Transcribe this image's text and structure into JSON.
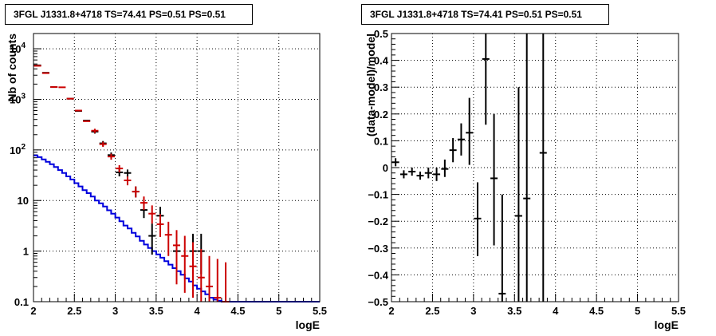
{
  "chart_data": [
    {
      "type": "line",
      "title": "3FGL J1331.8+4718 TS=74.41 PS=0.51 PS=0.51",
      "xlabel": "logE",
      "ylabel": "Nb of counts",
      "xlim": [
        2,
        5.5
      ],
      "ylim": [
        0.1,
        20000
      ],
      "yscale": "log",
      "grid": true,
      "x_ticks": [
        "2",
        "2.5",
        "3",
        "3.5",
        "4",
        "4.5",
        "5",
        "5.5"
      ],
      "y_ticks": [
        "0.1",
        "1",
        "10",
        "10^2",
        "10^3",
        "10^4"
      ],
      "colors": {
        "data": "#000000",
        "model_total": "#cc0000",
        "model_component": "#0000dd"
      },
      "series": [
        {
          "style": "black-points",
          "points": [
            {
              "x": 2.05,
              "y": 4700
            },
            {
              "x": 2.15,
              "y": 3350
            },
            {
              "x": 2.25,
              "y": 1750
            },
            {
              "x": 2.45,
              "y": 1030
            },
            {
              "x": 2.55,
              "y": 590
            },
            {
              "x": 2.65,
              "y": 380
            },
            {
              "x": 2.75,
              "y": 230,
              "ylo": 210,
              "yhi": 252
            },
            {
              "x": 2.85,
              "y": 135,
              "ylo": 120,
              "yhi": 150
            },
            {
              "x": 2.95,
              "y": 79,
              "ylo": 70,
              "yhi": 89
            },
            {
              "x": 3.05,
              "y": 36,
              "ylo": 30,
              "yhi": 42
            },
            {
              "x": 3.15,
              "y": 35,
              "ylo": 29,
              "yhi": 41
            },
            {
              "x": 3.25,
              "y": 15,
              "ylo": 11.5,
              "yhi": 19
            },
            {
              "x": 3.35,
              "y": 6.5,
              "ylo": 4.5,
              "yhi": 9
            },
            {
              "x": 3.45,
              "y": 2.0,
              "ylo": 0.85,
              "yhi": 3.5
            },
            {
              "x": 3.55,
              "y": 5.0,
              "ylo": 3.0,
              "yhi": 7.5
            },
            {
              "x": 3.75,
              "y": 1.0,
              "ylo": 0.35,
              "yhi": 2.2
            },
            {
              "x": 3.95,
              "y": 1.0,
              "ylo": 0.35,
              "yhi": 2.2
            },
            {
              "x": 4.05,
              "y": 1.0,
              "ylo": 0.35,
              "yhi": 2.2
            }
          ]
        },
        {
          "style": "red-points",
          "points": [
            {
              "x": 2.05,
              "y": 4600
            },
            {
              "x": 2.15,
              "y": 3300
            },
            {
              "x": 2.25,
              "y": 1750
            },
            {
              "x": 2.35,
              "y": 1730
            },
            {
              "x": 2.45,
              "y": 1030
            },
            {
              "x": 2.55,
              "y": 600
            },
            {
              "x": 2.65,
              "y": 370
            },
            {
              "x": 2.75,
              "y": 240,
              "ylo": 215,
              "yhi": 262
            },
            {
              "x": 2.85,
              "y": 130,
              "ylo": 115,
              "yhi": 145
            },
            {
              "x": 2.95,
              "y": 74,
              "ylo": 64,
              "yhi": 84
            },
            {
              "x": 3.05,
              "y": 43,
              "ylo": 36,
              "yhi": 50
            },
            {
              "x": 3.15,
              "y": 25,
              "ylo": 20,
              "yhi": 30
            },
            {
              "x": 3.25,
              "y": 15,
              "ylo": 11.5,
              "yhi": 19
            },
            {
              "x": 3.35,
              "y": 9.0,
              "ylo": 6.5,
              "yhi": 12
            },
            {
              "x": 3.45,
              "y": 5.5,
              "ylo": 3.5,
              "yhi": 8
            },
            {
              "x": 3.55,
              "y": 3.4,
              "ylo": 1.9,
              "yhi": 5.4
            },
            {
              "x": 3.65,
              "y": 2.1,
              "ylo": 0.8,
              "yhi": 3.8
            },
            {
              "x": 3.75,
              "y": 1.3,
              "ylo": 0.22,
              "yhi": 2.6
            },
            {
              "x": 3.85,
              "y": 0.8,
              "ylo": 0.15,
              "yhi": 2.0
            },
            {
              "x": 3.95,
              "y": 0.5,
              "ylo": 0.12,
              "yhi": 1.5
            },
            {
              "x": 4.05,
              "y": 0.3,
              "ylo": 0.1,
              "yhi": 1.1
            },
            {
              "x": 4.15,
              "y": 0.2,
              "ylo": 0.1,
              "yhi": 0.8
            },
            {
              "x": 4.25,
              "y": 0.12,
              "ylo": 0.1,
              "yhi": 0.7
            },
            {
              "x": 4.35,
              "y": 0.1,
              "ylo": 0.1,
              "yhi": 0.6
            }
          ]
        },
        {
          "style": "blue-step",
          "edges": [
            2.0,
            2.05,
            2.1,
            2.15,
            2.2,
            2.25,
            2.3,
            2.35,
            2.4,
            2.45,
            2.5,
            2.55,
            2.6,
            2.65,
            2.7,
            2.75,
            2.8,
            2.85,
            2.9,
            2.95,
            3.0,
            3.05,
            3.1,
            3.15,
            3.2,
            3.25,
            3.3,
            3.35,
            3.4,
            3.45,
            3.5,
            3.55,
            3.6,
            3.65,
            3.7,
            3.75,
            3.8,
            3.85,
            3.9,
            3.95,
            4.0,
            4.05,
            4.1,
            4.15,
            4.2,
            4.25,
            4.3,
            4.35,
            4.4,
            5.5
          ],
          "values": [
            78,
            72,
            65,
            58,
            52,
            46,
            40,
            35,
            30,
            26,
            22,
            19,
            16,
            14,
            12,
            10,
            8.8,
            7.6,
            6.4,
            5.5,
            4.6,
            3.9,
            3.2,
            2.8,
            2.3,
            1.95,
            1.6,
            1.35,
            1.15,
            1.0,
            0.86,
            0.74,
            0.63,
            0.54,
            0.46,
            0.4,
            0.34,
            0.29,
            0.25,
            0.21,
            0.18,
            0.16,
            0.14,
            0.12,
            0.11,
            0.105,
            0.1,
            0.1,
            0.1
          ]
        }
      ]
    },
    {
      "type": "scatter",
      "title": "3FGL J1331.8+4718 TS=74.41 PS=0.51 PS=0.51",
      "xlabel": "logE",
      "ylabel": "(data-model)/model",
      "xlim": [
        2,
        5.5
      ],
      "ylim": [
        -0.5,
        0.5
      ],
      "grid": true,
      "x_ticks": [
        "2",
        "2.5",
        "3",
        "3.5",
        "4",
        "4.5",
        "5",
        "5.5"
      ],
      "y_ticks": [
        "-0.5",
        "-0.4",
        "-0.3",
        "-0.2",
        "-0.1",
        "0",
        "0.1",
        "0.2",
        "0.3",
        "0.4",
        "0.5"
      ],
      "points": [
        {
          "x": 2.05,
          "y": 0.02,
          "ylo": 0.005,
          "yhi": 0.035
        },
        {
          "x": 2.15,
          "y": -0.025,
          "ylo": -0.04,
          "yhi": -0.01
        },
        {
          "x": 2.25,
          "y": -0.015,
          "ylo": -0.03,
          "yhi": 0.0
        },
        {
          "x": 2.35,
          "y": -0.03,
          "ylo": -0.045,
          "yhi": -0.015
        },
        {
          "x": 2.45,
          "y": -0.02,
          "ylo": -0.04,
          "yhi": 0.0
        },
        {
          "x": 2.55,
          "y": -0.025,
          "ylo": -0.05,
          "yhi": 0.0
        },
        {
          "x": 2.65,
          "y": -0.005,
          "ylo": -0.035,
          "yhi": 0.03
        },
        {
          "x": 2.75,
          "y": 0.065,
          "ylo": 0.02,
          "yhi": 0.11
        },
        {
          "x": 2.85,
          "y": 0.105,
          "ylo": 0.045,
          "yhi": 0.165
        },
        {
          "x": 2.95,
          "y": 0.13,
          "ylo": 0.01,
          "yhi": 0.26
        },
        {
          "x": 3.05,
          "y": -0.19,
          "ylo": -0.33,
          "yhi": -0.055
        },
        {
          "x": 3.15,
          "y": 0.405,
          "ylo": 0.16,
          "yhi": 0.65
        },
        {
          "x": 3.25,
          "y": -0.04,
          "ylo": -0.29,
          "yhi": 0.2
        },
        {
          "x": 3.35,
          "y": -0.47,
          "ylo": -0.85,
          "yhi": -0.1
        },
        {
          "x": 3.55,
          "y": -0.18,
          "ylo": -0.65,
          "yhi": 0.3
        },
        {
          "x": 3.65,
          "y": -0.115,
          "ylo": -0.9,
          "yhi": 0.9
        },
        {
          "x": 3.85,
          "y": 0.055,
          "ylo": -0.9,
          "yhi": 1.0
        }
      ]
    }
  ]
}
